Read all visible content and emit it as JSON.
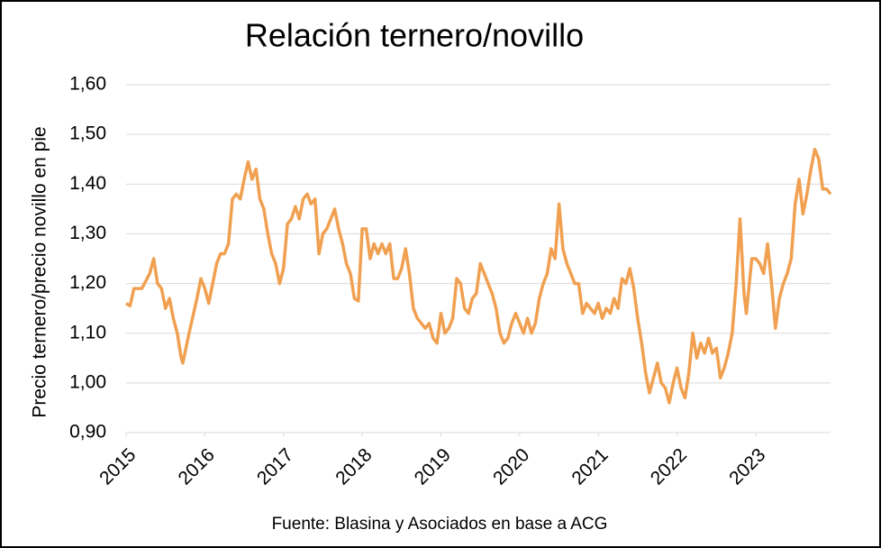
{
  "chart_data": {
    "type": "line",
    "title": "Relación ternero/novillo",
    "y_label": "Precio ternero/precio novillo en pie",
    "source": "Fuente: Blasina y Asociados en base a ACG",
    "x": [
      2015.0,
      2015.05,
      2015.1,
      2015.2,
      2015.3,
      2015.35,
      2015.4,
      2015.45,
      2015.5,
      2015.55,
      2015.6,
      2015.65,
      2015.7,
      2015.72,
      2015.8,
      2015.9,
      2015.95,
      2016.0,
      2016.05,
      2016.1,
      2016.15,
      2016.2,
      2016.25,
      2016.3,
      2016.35,
      2016.4,
      2016.45,
      2016.5,
      2016.55,
      2016.6,
      2016.65,
      2016.7,
      2016.75,
      2016.8,
      2016.85,
      2016.9,
      2016.95,
      2017.0,
      2017.05,
      2017.1,
      2017.15,
      2017.2,
      2017.25,
      2017.3,
      2017.35,
      2017.4,
      2017.45,
      2017.5,
      2017.55,
      2017.6,
      2017.65,
      2017.7,
      2017.75,
      2017.8,
      2017.85,
      2017.9,
      2017.95,
      2018.0,
      2018.05,
      2018.1,
      2018.15,
      2018.2,
      2018.25,
      2018.3,
      2018.35,
      2018.4,
      2018.45,
      2018.5,
      2018.55,
      2018.6,
      2018.65,
      2018.7,
      2018.75,
      2018.8,
      2018.85,
      2018.9,
      2018.95,
      2019.0,
      2019.05,
      2019.1,
      2019.15,
      2019.2,
      2019.25,
      2019.3,
      2019.35,
      2019.4,
      2019.45,
      2019.5,
      2019.55,
      2019.6,
      2019.65,
      2019.7,
      2019.75,
      2019.8,
      2019.85,
      2019.9,
      2019.95,
      2020.0,
      2020.05,
      2020.1,
      2020.15,
      2020.2,
      2020.25,
      2020.3,
      2020.35,
      2020.4,
      2020.45,
      2020.5,
      2020.55,
      2020.6,
      2020.65,
      2020.7,
      2020.75,
      2020.8,
      2020.85,
      2020.9,
      2020.95,
      2021.0,
      2021.05,
      2021.1,
      2021.15,
      2021.2,
      2021.25,
      2021.3,
      2021.35,
      2021.4,
      2021.45,
      2021.5,
      2021.55,
      2021.6,
      2021.65,
      2021.7,
      2021.75,
      2021.8,
      2021.85,
      2021.9,
      2021.95,
      2022.0,
      2022.05,
      2022.1,
      2022.15,
      2022.2,
      2022.25,
      2022.3,
      2022.35,
      2022.4,
      2022.45,
      2022.5,
      2022.55,
      2022.6,
      2022.65,
      2022.7,
      2022.75,
      2022.8,
      2022.85,
      2022.88,
      2022.95,
      2023.0,
      2023.05,
      2023.1,
      2023.15,
      2023.2,
      2023.25,
      2023.3,
      2023.35,
      2023.4,
      2023.45,
      2023.5,
      2023.55,
      2023.6,
      2023.65,
      2023.7,
      2023.75,
      2023.8,
      2023.85,
      2023.9,
      2023.95
    ],
    "series": [
      {
        "name": "Relación ternero/novillo",
        "color": "#f0a050",
        "values": [
          1.16,
          1.155,
          1.19,
          1.19,
          1.22,
          1.25,
          1.2,
          1.19,
          1.15,
          1.17,
          1.13,
          1.1,
          1.05,
          1.04,
          1.1,
          1.17,
          1.21,
          1.19,
          1.16,
          1.2,
          1.24,
          1.26,
          1.26,
          1.28,
          1.37,
          1.38,
          1.37,
          1.41,
          1.445,
          1.41,
          1.43,
          1.37,
          1.35,
          1.3,
          1.26,
          1.24,
          1.2,
          1.23,
          1.32,
          1.33,
          1.355,
          1.33,
          1.37,
          1.38,
          1.36,
          1.37,
          1.26,
          1.3,
          1.31,
          1.33,
          1.35,
          1.31,
          1.28,
          1.24,
          1.22,
          1.17,
          1.165,
          1.31,
          1.31,
          1.25,
          1.28,
          1.26,
          1.28,
          1.26,
          1.28,
          1.21,
          1.21,
          1.23,
          1.27,
          1.22,
          1.15,
          1.13,
          1.12,
          1.11,
          1.12,
          1.09,
          1.08,
          1.14,
          1.1,
          1.11,
          1.13,
          1.21,
          1.2,
          1.15,
          1.14,
          1.17,
          1.18,
          1.24,
          1.22,
          1.2,
          1.18,
          1.15,
          1.1,
          1.08,
          1.09,
          1.12,
          1.14,
          1.12,
          1.1,
          1.13,
          1.1,
          1.12,
          1.17,
          1.2,
          1.22,
          1.27,
          1.25,
          1.36,
          1.27,
          1.24,
          1.22,
          1.2,
          1.2,
          1.14,
          1.16,
          1.15,
          1.14,
          1.16,
          1.13,
          1.15,
          1.14,
          1.17,
          1.15,
          1.21,
          1.2,
          1.23,
          1.19,
          1.13,
          1.08,
          1.02,
          0.98,
          1.01,
          1.04,
          1.0,
          0.99,
          0.96,
          1.0,
          1.03,
          0.99,
          0.97,
          1.02,
          1.1,
          1.05,
          1.08,
          1.06,
          1.09,
          1.06,
          1.07,
          1.01,
          1.03,
          1.06,
          1.1,
          1.2,
          1.33,
          1.18,
          1.14,
          1.25,
          1.25,
          1.24,
          1.22,
          1.28,
          1.2,
          1.11,
          1.17,
          1.2,
          1.22,
          1.25,
          1.36,
          1.41,
          1.34,
          1.38,
          1.43,
          1.47,
          1.45,
          1.39,
          1.39,
          1.38
        ]
      }
    ],
    "xlim": [
      2015,
      2023.95
    ],
    "xticks": [
      2015,
      2016,
      2017,
      2018,
      2019,
      2020,
      2021,
      2022,
      2023
    ],
    "ylim": [
      0.9,
      1.6
    ],
    "yticks": [
      {
        "value": 0.9,
        "label": "0,90"
      },
      {
        "value": 1.0,
        "label": "1,00"
      },
      {
        "value": 1.1,
        "label": "1,10"
      },
      {
        "value": 1.2,
        "label": "1,20"
      },
      {
        "value": 1.3,
        "label": "1,30"
      },
      {
        "value": 1.4,
        "label": "1,40"
      },
      {
        "value": 1.5,
        "label": "1,50"
      },
      {
        "value": 1.6,
        "label": "1,60"
      }
    ],
    "grid": true
  }
}
